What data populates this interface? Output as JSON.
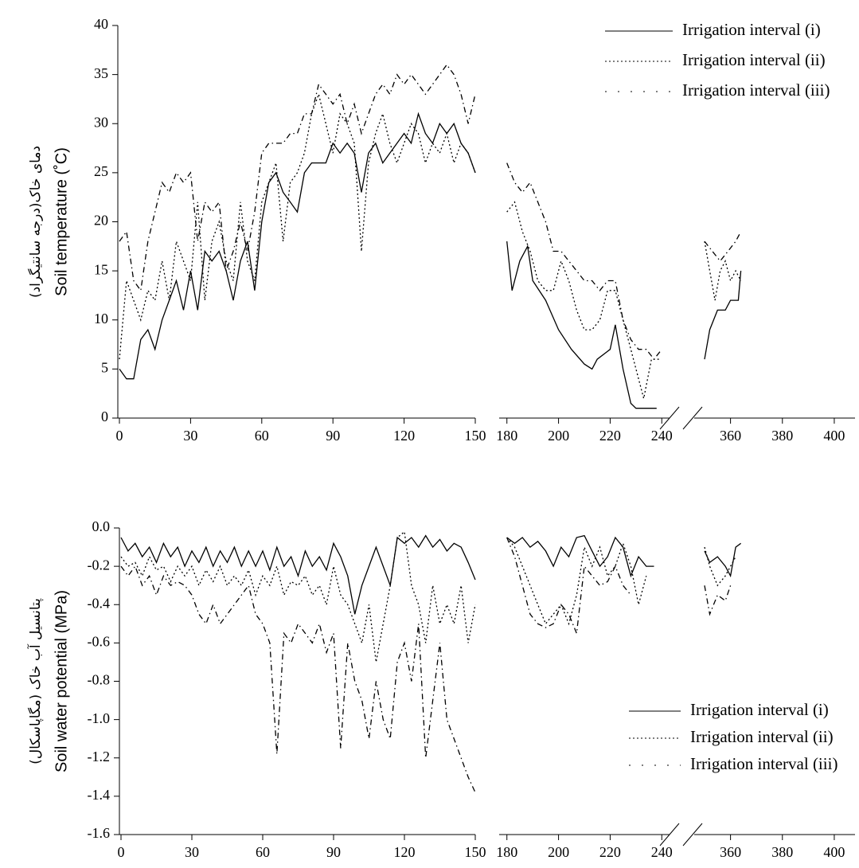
{
  "chart_data": [
    {
      "type": "line",
      "ylabel": "Soil temperature (˚C)",
      "ylabel_fa": "دمای خاک(درجه سانتیگراد)",
      "ylim": [
        0,
        40
      ],
      "yticks": [
        0,
        5,
        10,
        15,
        20,
        25,
        30,
        35,
        40
      ],
      "x_segments": [
        {
          "xlim": [
            0,
            150
          ],
          "xticks": [
            0,
            30,
            60,
            90,
            120,
            150
          ]
        },
        {
          "xlim": [
            177,
            243
          ],
          "xticks": [
            180,
            200,
            220,
            240
          ]
        },
        {
          "xlim": [
            346,
            408
          ],
          "xticks": [
            360,
            380,
            400
          ]
        }
      ],
      "legend": "upper right",
      "series": [
        {
          "name": "Irrigation interval (i)",
          "color": "#000000",
          "dash": "solid",
          "x": [
            0,
            3,
            6,
            9,
            12,
            15,
            18,
            21,
            24,
            27,
            30,
            33,
            36,
            39,
            42,
            45,
            48,
            51,
            54,
            57,
            60,
            63,
            66,
            69,
            72,
            75,
            78,
            81,
            84,
            87,
            90,
            93,
            96,
            99,
            102,
            105,
            108,
            111,
            114,
            117,
            120,
            123,
            126,
            129,
            132,
            135,
            138,
            141,
            144,
            147,
            150,
            180,
            182,
            185,
            188,
            190,
            195,
            200,
            205,
            210,
            213,
            215,
            220,
            222,
            225,
            228,
            230,
            235,
            238,
            350,
            352,
            355,
            358,
            360,
            363,
            364
          ],
          "values": [
            5,
            4,
            4,
            8,
            9,
            7,
            10,
            12,
            14,
            11,
            15,
            11,
            17,
            16,
            17,
            15,
            12,
            16,
            18,
            13,
            20,
            24,
            25,
            23,
            22,
            21,
            25,
            26,
            26,
            26,
            28,
            27,
            28,
            27,
            23,
            27,
            28,
            26,
            27,
            28,
            29,
            28,
            31,
            29,
            28,
            30,
            29,
            30,
            28,
            27,
            25,
            18,
            13,
            16,
            17.5,
            14,
            12,
            9,
            7,
            5.5,
            5,
            6,
            7,
            9.5,
            5,
            1.5,
            1,
            1,
            1,
            6,
            9,
            11,
            11,
            12,
            12,
            15
          ]
        },
        {
          "name": "Irrigation interval (ii)",
          "color": "#000000",
          "dash": "dotted",
          "x": [
            0,
            3,
            6,
            9,
            12,
            15,
            18,
            21,
            24,
            27,
            30,
            33,
            36,
            39,
            42,
            45,
            48,
            51,
            54,
            57,
            60,
            63,
            66,
            69,
            72,
            75,
            78,
            81,
            84,
            87,
            90,
            93,
            96,
            99,
            102,
            105,
            108,
            111,
            114,
            117,
            120,
            123,
            126,
            129,
            132,
            135,
            138,
            141,
            144,
            147,
            150,
            180,
            183,
            186,
            189,
            192,
            195,
            198,
            201,
            204,
            207,
            210,
            213,
            216,
            219,
            222,
            225,
            228,
            231,
            233,
            236,
            239,
            350,
            352,
            354,
            356,
            358,
            360,
            362,
            364
          ],
          "values": [
            6,
            14,
            12,
            10,
            13,
            12,
            16,
            12,
            18,
            16,
            14,
            22,
            12,
            18,
            20,
            16,
            14,
            22,
            16,
            14,
            22,
            24,
            26,
            18,
            24,
            25,
            27,
            31,
            33,
            30,
            27,
            31,
            30,
            28,
            17,
            26,
            29,
            31,
            28,
            26,
            28,
            30,
            29,
            26,
            28,
            27,
            29,
            26,
            28,
            27,
            25,
            21,
            22,
            19,
            17,
            14,
            13,
            13,
            16,
            14,
            11,
            9,
            9,
            10,
            13,
            13,
            10,
            7,
            4,
            2,
            6,
            6,
            18,
            15,
            12,
            15,
            16,
            14,
            15,
            14
          ]
        },
        {
          "name": "Irrigation interval (iii)",
          "color": "#000000",
          "dash": "dashdot",
          "x": [
            0,
            3,
            6,
            9,
            12,
            15,
            18,
            21,
            24,
            27,
            30,
            33,
            36,
            39,
            42,
            45,
            48,
            51,
            54,
            57,
            60,
            63,
            66,
            69,
            72,
            75,
            78,
            81,
            84,
            87,
            90,
            93,
            96,
            99,
            102,
            105,
            108,
            111,
            114,
            117,
            120,
            123,
            126,
            129,
            132,
            135,
            138,
            141,
            144,
            147,
            150,
            180,
            183,
            186,
            189,
            192,
            195,
            198,
            201,
            204,
            207,
            210,
            213,
            216,
            219,
            222,
            225,
            228,
            231,
            234,
            237,
            240,
            350,
            353,
            356,
            359,
            362,
            364
          ],
          "values": [
            18,
            19,
            14,
            13,
            18,
            21,
            24,
            23,
            25,
            24,
            25,
            18,
            22,
            21,
            22,
            15,
            17,
            20,
            17,
            21,
            27,
            28,
            28,
            28,
            29,
            29,
            31,
            31,
            34,
            33,
            32,
            33,
            30,
            32,
            29,
            31,
            33,
            34,
            33,
            35,
            34,
            35,
            34,
            33,
            34,
            35,
            36,
            35,
            33,
            30,
            33,
            26,
            24,
            23,
            24,
            22,
            20,
            17,
            17,
            16,
            15,
            14,
            14,
            13,
            14,
            14,
            10,
            8,
            7,
            7,
            6,
            7,
            18,
            17,
            16,
            17,
            18,
            19
          ]
        }
      ]
    },
    {
      "type": "line",
      "ylabel": "Soil water potential (MPa)",
      "ylabel_fa": "پتانسیل آب خاک (مگاپاسکال)",
      "ylim": [
        -1.6,
        0
      ],
      "yticks": [
        -1.6,
        -1.4,
        -1.2,
        {
          "value": -1.0,
          "label": "-1.0"
        },
        -0.8,
        -0.6,
        -0.4,
        -0.2,
        {
          "value": 0,
          "label": "0.0"
        }
      ],
      "x_segments": [
        {
          "xlim": [
            0,
            150
          ],
          "xticks": [
            0,
            30,
            60,
            90,
            120,
            150
          ]
        },
        {
          "xlim": [
            177,
            243
          ],
          "xticks": [
            180,
            200,
            220,
            240
          ]
        },
        {
          "xlim": [
            346,
            408
          ],
          "xticks": [
            360,
            380,
            400
          ]
        }
      ],
      "legend": "lower right",
      "series": [
        {
          "name": "Irrigation interval (i)",
          "color": "#000000",
          "dash": "solid",
          "x": [
            0,
            3,
            6,
            9,
            12,
            15,
            18,
            21,
            24,
            27,
            30,
            33,
            36,
            39,
            42,
            45,
            48,
            51,
            54,
            57,
            60,
            63,
            66,
            69,
            72,
            75,
            78,
            81,
            84,
            87,
            90,
            93,
            96,
            99,
            102,
            105,
            108,
            111,
            114,
            117,
            120,
            123,
            126,
            129,
            132,
            135,
            138,
            141,
            144,
            147,
            150,
            180,
            183,
            186,
            189,
            192,
            195,
            198,
            201,
            204,
            207,
            210,
            213,
            216,
            219,
            222,
            225,
            228,
            231,
            234,
            237,
            350,
            352,
            355,
            358,
            360,
            362,
            364
          ],
          "values": [
            -0.05,
            -0.12,
            -0.08,
            -0.15,
            -0.1,
            -0.18,
            -0.08,
            -0.15,
            -0.1,
            -0.2,
            -0.12,
            -0.18,
            -0.1,
            -0.2,
            -0.12,
            -0.18,
            -0.1,
            -0.2,
            -0.12,
            -0.2,
            -0.12,
            -0.22,
            -0.1,
            -0.2,
            -0.15,
            -0.25,
            -0.12,
            -0.2,
            -0.15,
            -0.22,
            -0.08,
            -0.15,
            -0.25,
            -0.45,
            -0.3,
            -0.2,
            -0.1,
            -0.2,
            -0.3,
            -0.05,
            -0.08,
            -0.05,
            -0.1,
            -0.04,
            -0.1,
            -0.06,
            -0.12,
            -0.08,
            -0.1,
            -0.18,
            -0.27,
            -0.05,
            -0.08,
            -0.05,
            -0.1,
            -0.07,
            -0.12,
            -0.2,
            -0.1,
            -0.15,
            -0.05,
            -0.04,
            -0.12,
            -0.2,
            -0.15,
            -0.05,
            -0.1,
            -0.25,
            -0.15,
            -0.2,
            -0.2,
            -0.12,
            -0.18,
            -0.15,
            -0.2,
            -0.25,
            -0.1,
            -0.08
          ]
        },
        {
          "name": "Irrigation interval (ii)",
          "color": "#000000",
          "dash": "dotted",
          "x": [
            0,
            3,
            6,
            9,
            12,
            15,
            18,
            21,
            24,
            27,
            30,
            33,
            36,
            39,
            42,
            45,
            48,
            51,
            54,
            57,
            60,
            63,
            66,
            69,
            72,
            75,
            78,
            81,
            84,
            87,
            90,
            93,
            96,
            99,
            102,
            105,
            108,
            111,
            114,
            117,
            120,
            123,
            126,
            129,
            132,
            135,
            138,
            141,
            144,
            147,
            150,
            180,
            183,
            186,
            189,
            192,
            195,
            198,
            201,
            204,
            207,
            210,
            213,
            216,
            219,
            222,
            225,
            228,
            231,
            234,
            350,
            352,
            355,
            358,
            360,
            362
          ],
          "values": [
            -0.15,
            -0.2,
            -0.18,
            -0.25,
            -0.15,
            -0.22,
            -0.2,
            -0.28,
            -0.2,
            -0.25,
            -0.2,
            -0.3,
            -0.22,
            -0.28,
            -0.2,
            -0.3,
            -0.25,
            -0.3,
            -0.22,
            -0.35,
            -0.25,
            -0.3,
            -0.2,
            -0.35,
            -0.28,
            -0.3,
            -0.25,
            -0.35,
            -0.3,
            -0.4,
            -0.2,
            -0.35,
            -0.4,
            -0.5,
            -0.6,
            -0.4,
            -0.7,
            -0.5,
            -0.3,
            -0.05,
            -0.02,
            -0.3,
            -0.4,
            -0.6,
            -0.3,
            -0.5,
            -0.4,
            -0.5,
            -0.3,
            -0.6,
            -0.4,
            -0.05,
            -0.1,
            -0.2,
            -0.3,
            -0.4,
            -0.5,
            -0.45,
            -0.4,
            -0.5,
            -0.35,
            -0.1,
            -0.2,
            -0.1,
            -0.25,
            -0.2,
            -0.08,
            -0.2,
            -0.4,
            -0.25,
            -0.1,
            -0.2,
            -0.3,
            -0.25,
            -0.2,
            -0.15
          ]
        },
        {
          "name": "Irrigation interval (iii)",
          "color": "#000000",
          "dash": "dashdot",
          "x": [
            0,
            3,
            6,
            9,
            12,
            15,
            18,
            21,
            24,
            27,
            30,
            33,
            36,
            39,
            42,
            45,
            48,
            51,
            54,
            57,
            60,
            63,
            66,
            69,
            72,
            75,
            78,
            81,
            84,
            87,
            90,
            93,
            96,
            99,
            102,
            105,
            108,
            111,
            114,
            117,
            120,
            123,
            126,
            129,
            132,
            135,
            138,
            141,
            144,
            147,
            150,
            180,
            183,
            186,
            189,
            192,
            195,
            198,
            201,
            204,
            207,
            210,
            213,
            216,
            219,
            222,
            225,
            228,
            350,
            352,
            355,
            358,
            360
          ],
          "values": [
            -0.2,
            -0.25,
            -0.2,
            -0.3,
            -0.25,
            -0.35,
            -0.25,
            -0.3,
            -0.28,
            -0.3,
            -0.35,
            -0.45,
            -0.5,
            -0.4,
            -0.5,
            -0.45,
            -0.4,
            -0.35,
            -0.3,
            -0.45,
            -0.5,
            -0.6,
            -1.18,
            -0.55,
            -0.6,
            -0.5,
            -0.55,
            -0.6,
            -0.5,
            -0.65,
            -0.55,
            -1.15,
            -0.6,
            -0.8,
            -0.9,
            -1.1,
            -0.8,
            -1.0,
            -1.1,
            -0.7,
            -0.6,
            -0.8,
            -0.5,
            -1.2,
            -0.9,
            -0.6,
            -1.0,
            -1.1,
            -1.2,
            -1.3,
            -1.38,
            -0.05,
            -0.15,
            -0.3,
            -0.45,
            -0.5,
            -0.52,
            -0.5,
            -0.4,
            -0.45,
            -0.55,
            -0.2,
            -0.25,
            -0.3,
            -0.28,
            -0.2,
            -0.3,
            -0.35,
            -0.3,
            -0.45,
            -0.35,
            -0.38,
            -0.3
          ]
        }
      ]
    }
  ]
}
